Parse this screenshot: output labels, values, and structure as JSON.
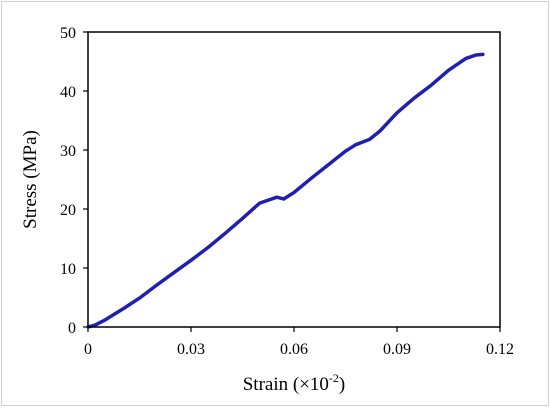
{
  "chart_data": {
    "type": "line",
    "title": "",
    "xlabel_main": "Strain (×10",
    "xlabel_sup": "-2",
    "xlabel_close": ")",
    "ylabel": "Stress (MPa)",
    "xlim": [
      0,
      0.12
    ],
    "ylim": [
      0,
      50
    ],
    "x_ticks": [
      0,
      0.03,
      0.06,
      0.09,
      0.12
    ],
    "x_tick_labels": [
      "0",
      "0.03",
      "0.06",
      "0.09",
      "0.12"
    ],
    "y_ticks": [
      0,
      10,
      20,
      30,
      40,
      50
    ],
    "y_tick_labels": [
      "0",
      "10",
      "20",
      "30",
      "40",
      "50"
    ],
    "grid": false,
    "legend": "none",
    "series": [
      {
        "color": "#1f1fb0",
        "x": [
          0,
          0.002,
          0.005,
          0.01,
          0.015,
          0.02,
          0.025,
          0.03,
          0.035,
          0.04,
          0.045,
          0.05,
          0.055,
          0.057,
          0.06,
          0.065,
          0.07,
          0.075,
          0.078,
          0.082,
          0.085,
          0.09,
          0.095,
          0.1,
          0.105,
          0.11,
          0.113,
          0.115
        ],
        "y": [
          0,
          0.3,
          1.2,
          3.0,
          4.9,
          7.1,
          9.2,
          11.3,
          13.5,
          15.9,
          18.4,
          21.0,
          22.0,
          21.7,
          22.8,
          25.2,
          27.5,
          29.8,
          30.9,
          31.8,
          33.2,
          36.3,
          38.8,
          41.0,
          43.5,
          45.5,
          46.1,
          46.2
        ]
      }
    ]
  }
}
